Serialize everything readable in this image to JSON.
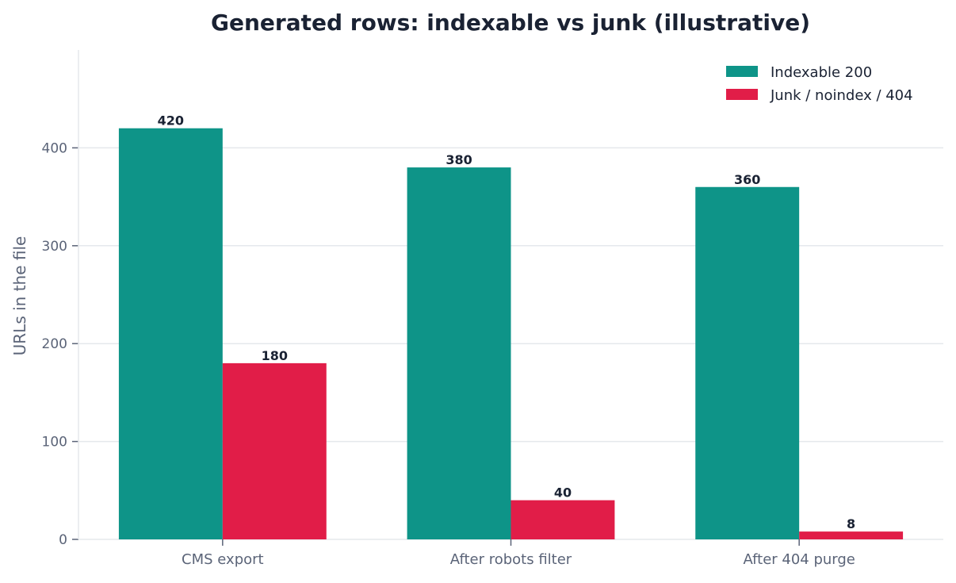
{
  "chart_data": {
    "type": "bar",
    "title": "Generated rows: indexable vs junk (illustrative)",
    "xlabel": "",
    "ylabel": "URLs in the file",
    "categories": [
      "CMS export",
      "After robots filter",
      "After 404 purge"
    ],
    "series": [
      {
        "name": "Indexable 200",
        "values": [
          420,
          380,
          360
        ],
        "color": "#0e9488"
      },
      {
        "name": "Junk / noindex / 404",
        "values": [
          180,
          40,
          8
        ],
        "color": "#e11d48"
      }
    ],
    "ylim": [
      0,
      500
    ],
    "yticks": [
      0,
      100,
      200,
      300,
      400
    ],
    "grid": "horizontal",
    "legend_position": "top-right",
    "data_labels": true
  }
}
